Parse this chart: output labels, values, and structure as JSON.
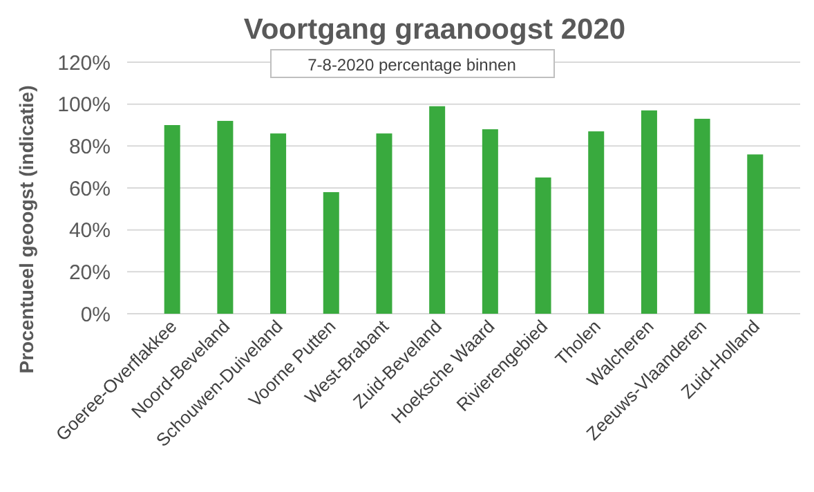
{
  "chart_data": {
    "type": "bar",
    "title": "Voortgang graanoogst 2020",
    "subtitle": "7-8-2020 percentage binnen",
    "ylabel": "Procentueel geoogst (indicatie)",
    "categories": [
      "Goeree-Overflakkee",
      "Noord-Beveland",
      "Schouwen-Duiveland",
      "Voorne Putten",
      "West-Brabant",
      "Zuid-Beveland",
      "Hoeksche Waard",
      "Rivierengebied",
      "Tholen",
      "Walcheren",
      "Zeeuws-Vlaanderen",
      "Zuid-Holland"
    ],
    "values": [
      0.9,
      0.92,
      0.86,
      0.58,
      0.86,
      0.99,
      0.88,
      0.65,
      0.87,
      0.97,
      0.93,
      0.76
    ],
    "color": "#39aa3e",
    "ylim": [
      0,
      1.2
    ],
    "yticks": [
      {
        "value": 0,
        "label": "0%"
      },
      {
        "value": 0.2,
        "label": "20%"
      },
      {
        "value": 0.4,
        "label": "40%"
      },
      {
        "value": 0.6,
        "label": "60%"
      },
      {
        "value": 0.8,
        "label": "80%"
      },
      {
        "value": 1.0,
        "label": "100%"
      },
      {
        "value": 1.2,
        "label": "120%"
      }
    ],
    "grid": true
  }
}
